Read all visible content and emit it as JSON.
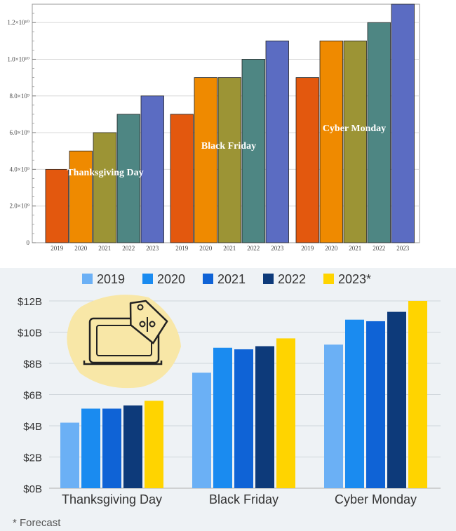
{
  "colors": {
    "top_series": [
      "#e3580e",
      "#ef8a00",
      "#9c9435",
      "#4e8683",
      "#5b6cc2"
    ],
    "bottom_series": [
      "#6bb0f5",
      "#1a8bf0",
      "#0f63d6",
      "#0d3a7a",
      "#ffd400"
    ],
    "bottom_bg": "#eef2f5",
    "badge": "#f8e7a7"
  },
  "icon": {
    "name": "laptop-price-tag-icon"
  },
  "chart_data": [
    {
      "type": "bar",
      "title": "",
      "xlabel": "",
      "ylabel": "",
      "ylim": [
        0,
        13000000000
      ],
      "grid": true,
      "y_ticks": [
        {
          "value": 0,
          "label": "0"
        },
        {
          "value": 2000000000,
          "label": "2.0×10⁹"
        },
        {
          "value": 4000000000,
          "label": "4.0×10⁹"
        },
        {
          "value": 6000000000,
          "label": "6.0×10⁹"
        },
        {
          "value": 8000000000,
          "label": "8.0×10⁹"
        },
        {
          "value": 10000000000,
          "label": "1.0×10¹⁰"
        },
        {
          "value": 12000000000,
          "label": "1.2×10¹⁰"
        }
      ],
      "groups": [
        "Thanksgiving Day",
        "Black Friday",
        "Cyber Monday"
      ],
      "series": [
        {
          "name": "2019",
          "values": [
            4000000000,
            7000000000,
            9000000000
          ]
        },
        {
          "name": "2020",
          "values": [
            5000000000,
            9000000000,
            11000000000
          ]
        },
        {
          "name": "2021",
          "values": [
            6000000000,
            9000000000,
            11000000000
          ]
        },
        {
          "name": "2022",
          "values": [
            7000000000,
            10000000000,
            12000000000
          ]
        },
        {
          "name": "2023",
          "values": [
            8000000000,
            11000000000,
            13000000000
          ]
        }
      ]
    },
    {
      "type": "bar",
      "title": "",
      "xlabel": "",
      "ylabel": "",
      "ylim": [
        0,
        12
      ],
      "grid": true,
      "y_ticks": [
        {
          "value": 0,
          "label": "$0B"
        },
        {
          "value": 2,
          "label": "$2B"
        },
        {
          "value": 4,
          "label": "$4B"
        },
        {
          "value": 6,
          "label": "$6B"
        },
        {
          "value": 8,
          "label": "$8B"
        },
        {
          "value": 10,
          "label": "$10B"
        },
        {
          "value": 12,
          "label": "$12B"
        }
      ],
      "categories": [
        "Thanksgiving Day",
        "Black Friday",
        "Cyber Monday"
      ],
      "legend": [
        "2019",
        "2020",
        "2021",
        "2022",
        "2023*"
      ],
      "series": [
        {
          "name": "2019",
          "values": [
            4.2,
            7.4,
            9.2
          ]
        },
        {
          "name": "2020",
          "values": [
            5.1,
            9.0,
            10.8
          ]
        },
        {
          "name": "2021",
          "values": [
            5.1,
            8.9,
            10.7
          ]
        },
        {
          "name": "2022",
          "values": [
            5.3,
            9.1,
            11.3
          ]
        },
        {
          "name": "2023*",
          "values": [
            5.6,
            9.6,
            12.0
          ]
        }
      ],
      "footnote": "* Forecast"
    }
  ]
}
